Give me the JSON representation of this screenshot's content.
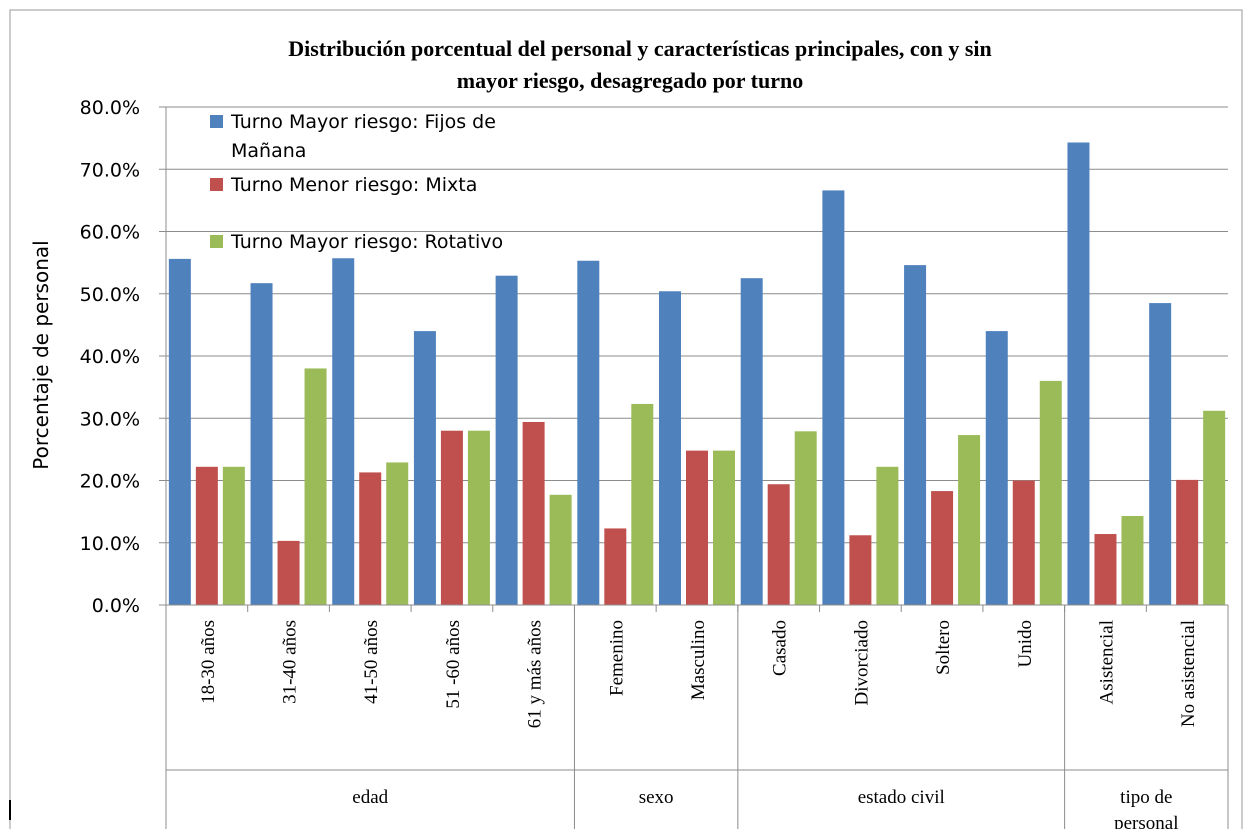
{
  "chart_data": {
    "type": "bar",
    "title_line1": "Distribución porcentual del personal y características principales, con y sin",
    "title_line2": "mayor riesgo, desagregado por turno",
    "ylabel": "Porcentaje de personal",
    "xlabel": "",
    "ylim": [
      0,
      80
    ],
    "yticks": [
      "0.0%",
      "10.0%",
      "20.0%",
      "30.0%",
      "40.0%",
      "50.0%",
      "60.0%",
      "70.0%",
      "80.0%"
    ],
    "grid": true,
    "legend_position": "top-left",
    "categories": [
      "18-30 años",
      "31-40 años",
      "41-50 años",
      "51 -60 años",
      "61 y más años",
      "Femenino",
      "Masculino",
      "Casado",
      "Divorciado",
      "Soltero",
      "Unido",
      "Asistencial",
      "No asistencial"
    ],
    "groups": [
      {
        "label": "edad",
        "span": 5
      },
      {
        "label": "sexo",
        "span": 2
      },
      {
        "label": "estado civil",
        "span": 4
      },
      {
        "label": "tipo de personal",
        "label_line1": "tipo de",
        "label_line2": "personal",
        "span": 2
      }
    ],
    "series": [
      {
        "name": "Turno Mayor riesgo: Fijos de Mañana",
        "name_line1": "Turno Mayor riesgo: Fijos de",
        "name_line2": "Mañana",
        "color": "#4F81BD",
        "values": [
          55.6,
          51.7,
          55.7,
          44.0,
          52.9,
          55.3,
          50.4,
          52.5,
          66.6,
          54.6,
          44.0,
          74.3,
          48.5
        ]
      },
      {
        "name": "Turno Menor riesgo: Mixta",
        "color": "#C0504D",
        "values": [
          22.2,
          10.3,
          21.3,
          28.0,
          29.4,
          12.3,
          24.8,
          19.4,
          11.2,
          18.3,
          20.0,
          11.4,
          20.1
        ]
      },
      {
        "name": "Turno Mayor riesgo: Rotativo",
        "color": "#9BBB59",
        "values": [
          22.2,
          38.0,
          22.9,
          28.0,
          17.7,
          32.3,
          24.8,
          27.9,
          22.2,
          27.3,
          36.0,
          14.3,
          31.2
        ]
      }
    ]
  }
}
